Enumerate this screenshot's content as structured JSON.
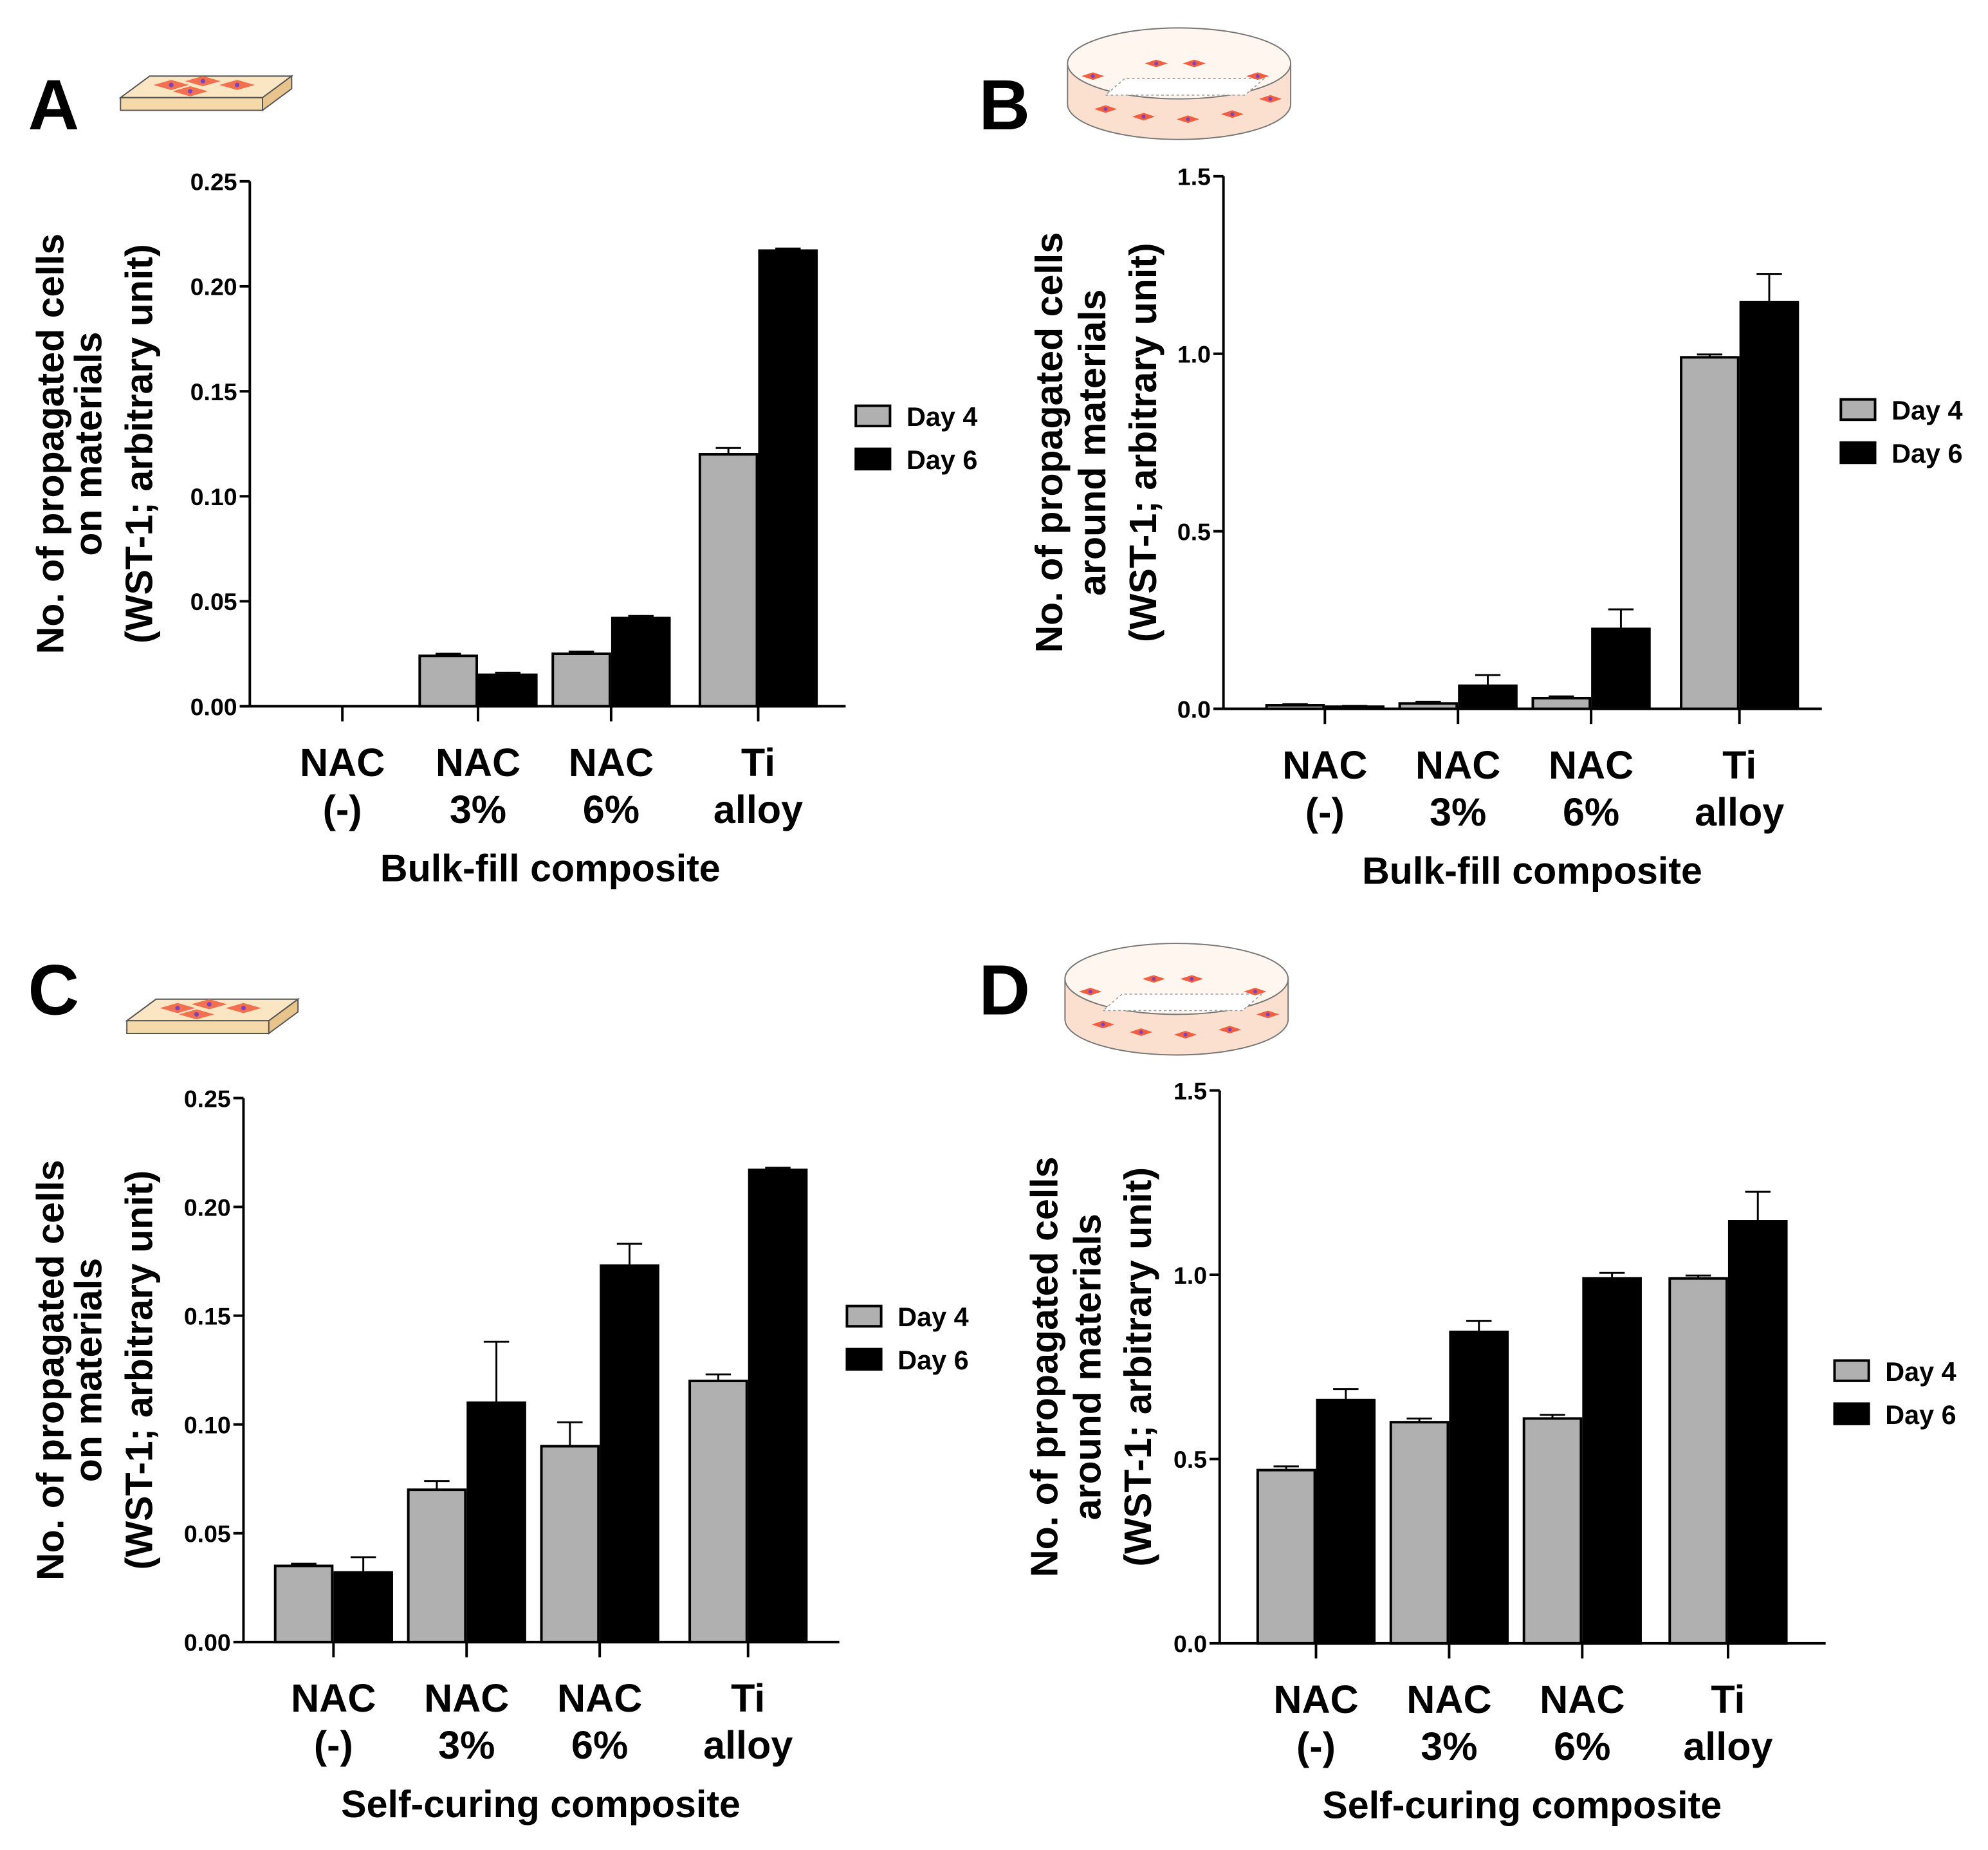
{
  "colors": {
    "day4": "#b0b0b0",
    "day6": "#000000",
    "axis": "#000000"
  },
  "chart_data": [
    {
      "panel": "A",
      "type": "bar",
      "icon": "material-slab-icon",
      "ylabel": [
        "No. of propagated cells",
        "on materials",
        "(WST-1; arbitrary unit)"
      ],
      "xlabel": "Bulk-fill composite",
      "categories": [
        [
          "NAC",
          "(-)"
        ],
        [
          "NAC",
          "3%"
        ],
        [
          "NAC",
          "6%"
        ],
        [
          "Ti",
          "alloy"
        ]
      ],
      "ylim": [
        0,
        0.25
      ],
      "yticks": [
        "0.00",
        "0.05",
        "0.10",
        "0.15",
        "0.20",
        "0.25"
      ],
      "ytick_values": [
        0,
        0.05,
        0.1,
        0.15,
        0.2,
        0.25
      ],
      "legend": [
        "Day 4",
        "Day 6"
      ],
      "legend_position": "right",
      "series": [
        {
          "name": "Day 4",
          "values": [
            0,
            0.024,
            0.025,
            0.12
          ],
          "errors": [
            0,
            0.001,
            0.001,
            0.003
          ]
        },
        {
          "name": "Day 6",
          "values": [
            0,
            0.015,
            0.042,
            0.217
          ],
          "errors": [
            0,
            0.001,
            0.001,
            0.001
          ]
        }
      ]
    },
    {
      "panel": "B",
      "type": "bar",
      "icon": "petri-dish-icon",
      "ylabel": [
        "No. of propagated cells",
        "around materials",
        "(WST-1; arbitrary unit)"
      ],
      "xlabel": "Bulk-fill composite",
      "categories": [
        [
          "NAC",
          "(-)"
        ],
        [
          "NAC",
          "3%"
        ],
        [
          "NAC",
          "6%"
        ],
        [
          "Ti",
          "alloy"
        ]
      ],
      "ylim": [
        0,
        1.5
      ],
      "yticks": [
        "0.0",
        "0.5",
        "1.0",
        "1.5"
      ],
      "ytick_values": [
        0,
        0.5,
        1.0,
        1.5
      ],
      "legend": [
        "Day 4",
        "Day 6"
      ],
      "legend_position": "right",
      "series": [
        {
          "name": "Day 4",
          "values": [
            0.01,
            0.015,
            0.03,
            0.99
          ],
          "errors": [
            0.003,
            0.005,
            0.005,
            0.008
          ]
        },
        {
          "name": "Day 6",
          "values": [
            0.006,
            0.065,
            0.225,
            1.145
          ],
          "errors": [
            0.002,
            0.03,
            0.055,
            0.08
          ]
        }
      ]
    },
    {
      "panel": "C",
      "type": "bar",
      "icon": "material-slab-icon",
      "ylabel": [
        "No. of propagated cells",
        "on materials",
        "(WST-1; arbitrary unit)"
      ],
      "xlabel": "Self-curing composite",
      "categories": [
        [
          "NAC",
          "(-)"
        ],
        [
          "NAC",
          "3%"
        ],
        [
          "NAC",
          "6%"
        ],
        [
          "Ti",
          "alloy"
        ]
      ],
      "ylim": [
        0,
        0.25
      ],
      "yticks": [
        "0.00",
        "0.05",
        "0.10",
        "0.15",
        "0.20",
        "0.25"
      ],
      "ytick_values": [
        0,
        0.05,
        0.1,
        0.15,
        0.2,
        0.25
      ],
      "legend": [
        "Day 4",
        "Day 6"
      ],
      "legend_position": "right",
      "series": [
        {
          "name": "Day 4",
          "values": [
            0.035,
            0.07,
            0.09,
            0.12
          ],
          "errors": [
            0.001,
            0.004,
            0.011,
            0.003
          ]
        },
        {
          "name": "Day 6",
          "values": [
            0.032,
            0.11,
            0.173,
            0.217
          ],
          "errors": [
            0.007,
            0.028,
            0.01,
            0.001
          ]
        }
      ]
    },
    {
      "panel": "D",
      "type": "bar",
      "icon": "petri-dish-icon",
      "ylabel": [
        "No. of propagated cells",
        "around materials",
        "(WST-1; arbitrary unit)"
      ],
      "xlabel": "Self-curing composite",
      "categories": [
        [
          "NAC",
          "(-)"
        ],
        [
          "NAC",
          "3%"
        ],
        [
          "NAC",
          "6%"
        ],
        [
          "Ti",
          "alloy"
        ]
      ],
      "ylim": [
        0,
        1.5
      ],
      "yticks": [
        "0.0",
        "0.5",
        "1.0",
        "1.5"
      ],
      "ytick_values": [
        0,
        0.5,
        1.0,
        1.5
      ],
      "legend": [
        "Day 4",
        "Day 6"
      ],
      "legend_position": "right",
      "series": [
        {
          "name": "Day 4",
          "values": [
            0.47,
            0.6,
            0.61,
            0.99
          ],
          "errors": [
            0.01,
            0.01,
            0.01,
            0.008
          ]
        },
        {
          "name": "Day 6",
          "values": [
            0.66,
            0.845,
            0.99,
            1.145
          ],
          "errors": [
            0.03,
            0.03,
            0.015,
            0.08
          ]
        }
      ]
    }
  ]
}
